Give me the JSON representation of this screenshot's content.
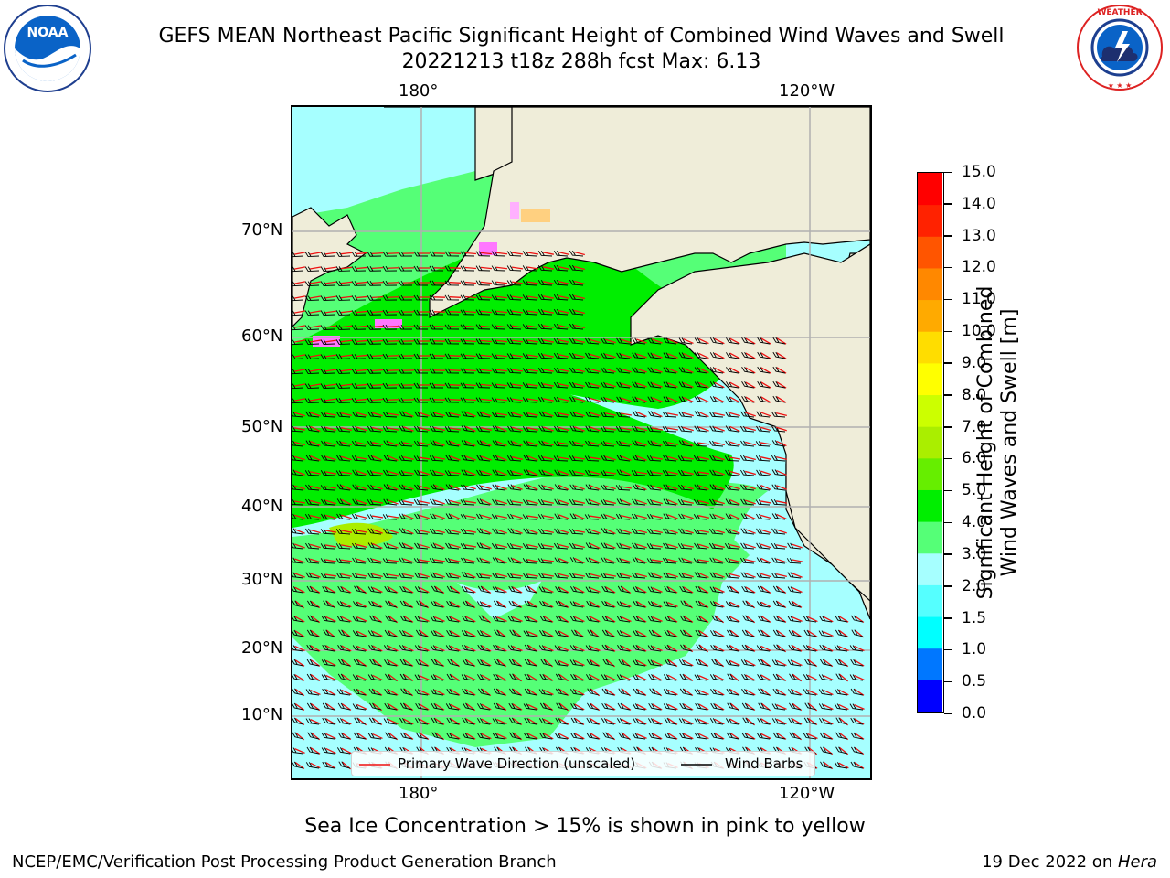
{
  "header": {
    "title_line1": "GEFS MEAN Northeast Pacific Significant Height of Combined Wind Waves and Swell",
    "title_line2": "20221213 t18z 288h fcst   Max: 6.13"
  },
  "logos": {
    "left": {
      "name": "NOAA",
      "ring_text": "NATIONAL OCEANIC AND ATMOSPHERIC ADMINISTRATION",
      "ring_text_bottom": "U.S. DEPARTMENT OF COMMERCE"
    },
    "right": {
      "name": "NATIONAL WEATHER SERVICE"
    }
  },
  "map": {
    "lon_labels": [
      "180°",
      "120°W"
    ],
    "lat_labels": [
      "70°N",
      "60°N",
      "50°N",
      "40°N",
      "30°N",
      "20°N",
      "10°N"
    ],
    "legend": {
      "wave_label": "Primary Wave Direction (unscaled)",
      "wind_label": "Wind Barbs",
      "wave_color": "#ee1111",
      "wind_color": "#000000"
    },
    "land_color": "#efedd9",
    "grid_color": "#b0b0b0"
  },
  "colorbar": {
    "title_line1": "Significant Height of Combined",
    "title_line2": "Wind Waves and Swell [m]",
    "ticks": [
      "15.0",
      "14.0",
      "13.0",
      "12.0",
      "11.0",
      "10.0",
      "9.0",
      "8.0",
      "7.0",
      "6.0",
      "5.0",
      "4.0",
      "3.0",
      "2.0",
      "1.5",
      "1.0",
      "0.5",
      "0.0"
    ],
    "colors_bottom_to_top": [
      "#0000ff",
      "#0077ff",
      "#00ffff",
      "#55ffff",
      "#a6ffff",
      "#55ff77",
      "#00ee00",
      "#66ee00",
      "#aaee00",
      "#ccff00",
      "#ffff00",
      "#ffdd00",
      "#ffaa00",
      "#ff8800",
      "#ff5500",
      "#ff2200",
      "#ff0000"
    ]
  },
  "note": "Sea Ice Concentration > 15% is shown in pink to yellow",
  "footer": {
    "left": "NCEP/EMC/Verification Post Processing Product Generation Branch",
    "right_prefix": "19 Dec 2022 on ",
    "right_host": "Hera"
  }
}
